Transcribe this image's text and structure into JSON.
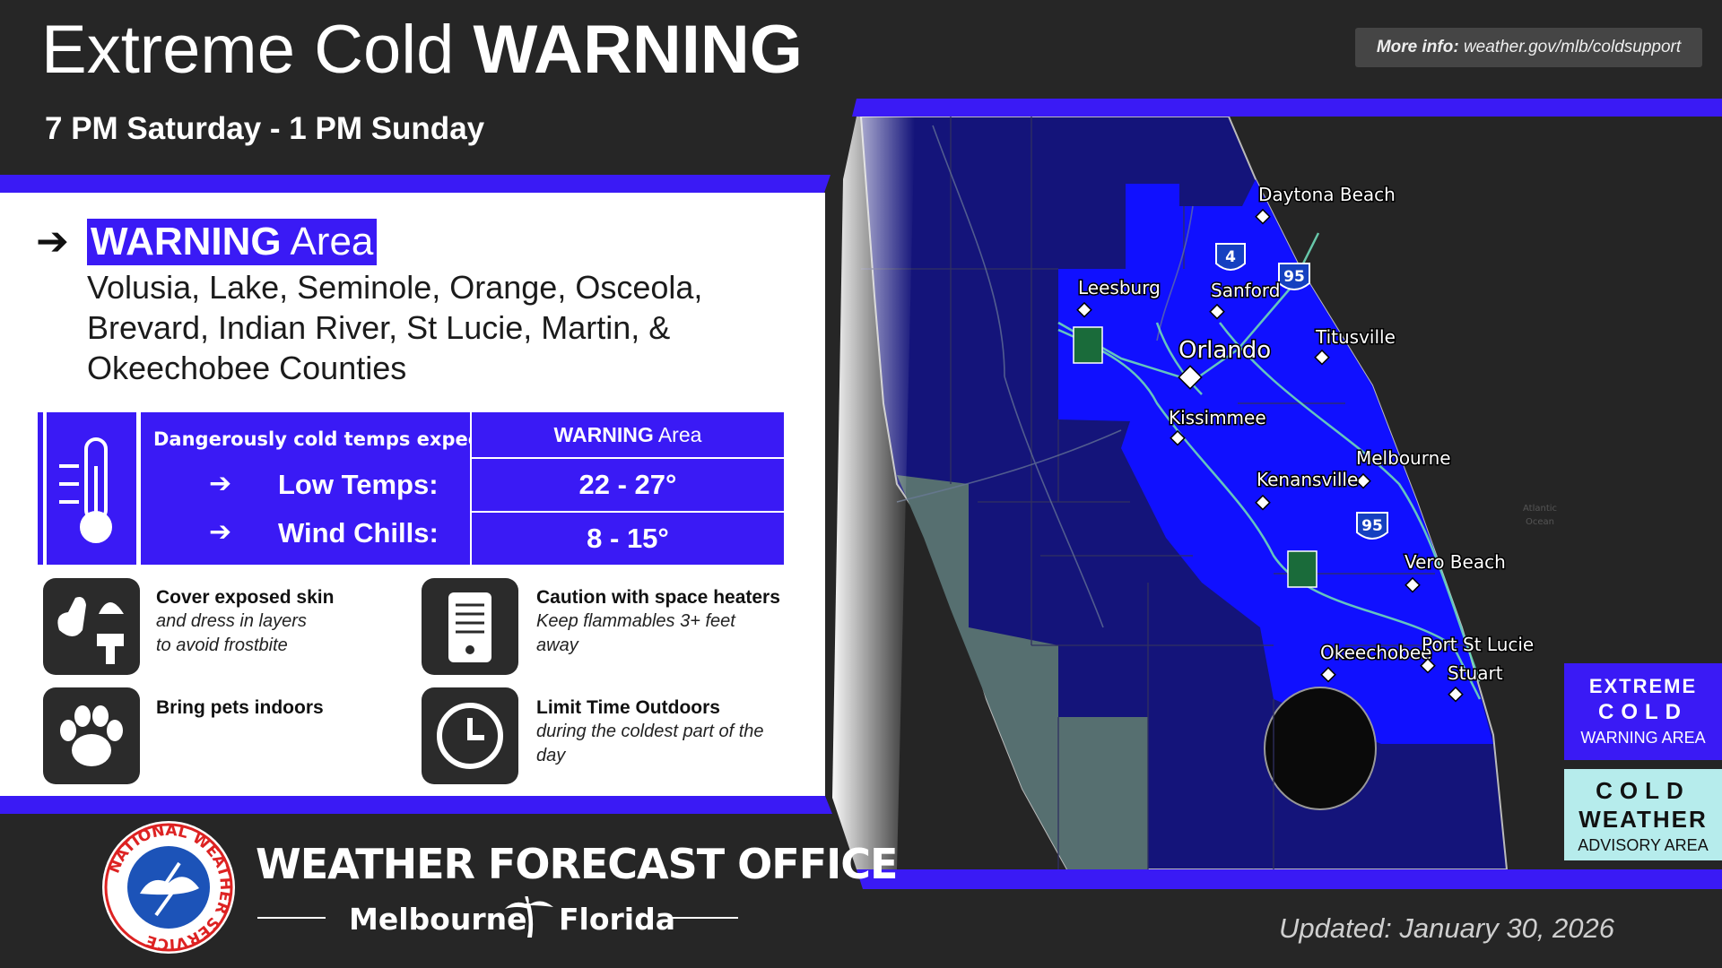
{
  "header": {
    "title_light": "Extreme Cold",
    "title_bold": "WARNING",
    "subtitle": "7 PM Saturday - 1 PM Sunday",
    "more_info_label": "More info:",
    "more_info_url": "weather.gov/mlb/coldsupport"
  },
  "warning_area": {
    "arrow": "➔",
    "heading_bold": "WARNING",
    "heading_rest": "Area",
    "counties": [
      "Volusia, Lake, Seminole, Orange, Osceola,",
      "Brevard, Indian River, St Lucie, Martin, &",
      "Okeechobee Counties"
    ]
  },
  "table": {
    "intro": "Dangerously cold temps expected.",
    "column_header_bold": "WARNING",
    "column_header_rest": "Area",
    "rows": [
      {
        "arrow": "➔",
        "label": "Low Temps:",
        "value": "22 - 27°"
      },
      {
        "arrow": "➔",
        "label": "Wind Chills:",
        "value": "8 - 15°"
      }
    ]
  },
  "tips": [
    {
      "title": "Cover exposed skin",
      "lines": [
        "and dress in layers",
        "to avoid frostbite"
      ]
    },
    {
      "title": "Caution with space heaters",
      "lines": [
        "Keep flammables 3+ feet",
        "away"
      ]
    },
    {
      "title": "Bring pets indoors",
      "lines": []
    },
    {
      "title": "Limit Time Outdoors",
      "lines": [
        "during the coldest part of the",
        "day"
      ]
    }
  ],
  "map": {
    "cities": [
      "Daytona Beach",
      "Leesburg",
      "Sanford",
      "Orlando",
      "Titusville",
      "Kissimmee",
      "Melbourne",
      "Kenansville",
      "Vero Beach",
      "Okeechobee",
      "Port St Lucie",
      "Stuart"
    ],
    "shields": [
      "4",
      "95",
      "95"
    ],
    "ocean_label": [
      "Atlantic",
      "Ocean"
    ]
  },
  "legend": [
    {
      "lines": [
        "EXTREME",
        "COLD",
        "WARNING AREA"
      ]
    },
    {
      "lines": [
        "COLD",
        "WEATHER",
        "ADVISORY AREA"
      ]
    }
  ],
  "footer": {
    "logo_text": "NATIONAL WEATHER SERVICE",
    "office": "WEATHER FORECAST OFFICE",
    "city": "Melbourne",
    "state": "Florida",
    "updated": "Updated: January 30, 2026"
  }
}
